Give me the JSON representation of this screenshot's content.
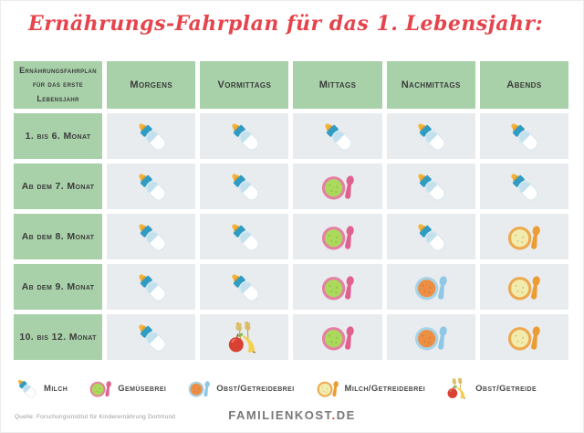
{
  "title": "Ernährungs-Fahrplan für das 1. Lebensjahr:",
  "table": {
    "corner_header": "Ernährungsfahrplan für das erste Lebensjahr",
    "columns": [
      "Morgens",
      "Vormittags",
      "Mittags",
      "Nachmittags",
      "Abends"
    ],
    "rows": [
      {
        "label": "1. bis 6. Monat",
        "cells": [
          "milch",
          "milch",
          "milch",
          "milch",
          "milch"
        ]
      },
      {
        "label": "Ab dem 7. Monat",
        "cells": [
          "milch",
          "milch",
          "gemuesebrei",
          "milch",
          "milch"
        ]
      },
      {
        "label": "Ab dem 8. Monat",
        "cells": [
          "milch",
          "milch",
          "gemuesebrei",
          "milch",
          "milch-getreidebrei"
        ]
      },
      {
        "label": "Ab dem 9. Monat",
        "cells": [
          "milch",
          "milch",
          "gemuesebrei",
          "obst-getreidebrei",
          "milch-getreidebrei"
        ]
      },
      {
        "label": "10. bis 12. Monat",
        "cells": [
          "milch",
          "obst-getreide",
          "gemuesebrei",
          "obst-getreidebrei",
          "milch-getreidebrei"
        ]
      }
    ]
  },
  "legend": [
    {
      "icon": "milch",
      "label": "Milch"
    },
    {
      "icon": "gemuesebrei",
      "label": "Gemüsebrei"
    },
    {
      "icon": "obst-getreidebrei",
      "label": "Obst/Getreidebrei"
    },
    {
      "icon": "milch-getreidebrei",
      "label": "Milch/Getreidebrei"
    },
    {
      "icon": "obst-getreide",
      "label": "Obst/Getreide"
    }
  ],
  "icons": {
    "milch": "milk-bottle-icon",
    "gemuesebrei": "vegetable-puree-bowl-icon",
    "obst-getreidebrei": "fruit-cereal-puree-bowl-icon",
    "milch-getreidebrei": "milk-cereal-puree-bowl-icon",
    "obst-getreide": "fruit-and-cereal-icon"
  },
  "footer": {
    "source": "Quelle: Forschungsinstitut für Kinderernährung Dortmund",
    "logo_main": "FAMILIENKOST",
    "logo_dot": ".",
    "logo_tld": "DE"
  },
  "colors": {
    "title_red": "#e6444c",
    "cell_green": "#a8d1a9",
    "cell_gray": "#e9ecef",
    "text": "#3f3f3f",
    "logo_gray": "#787878",
    "logo_dot_red": "#e03a3a"
  }
}
